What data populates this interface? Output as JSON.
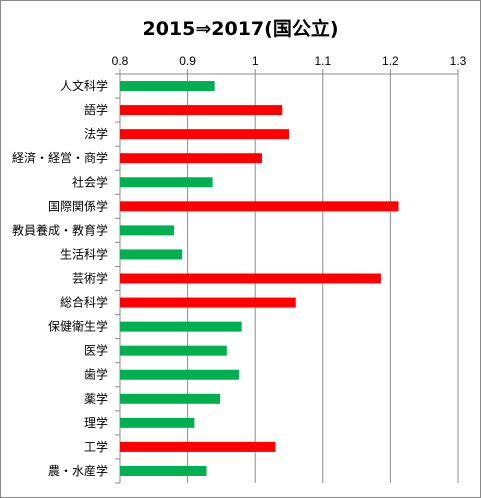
{
  "chart_data": {
    "type": "bar",
    "orientation": "horizontal",
    "title": "2015⇒2017(国公立)",
    "xlabel": "",
    "ylabel": "",
    "xlim": [
      0.8,
      1.3
    ],
    "xticks": [
      "0.8",
      "0.9",
      "1",
      "1.1",
      "1.2",
      "1.3"
    ],
    "grid": true,
    "legend": "none",
    "colors": {
      "above_1": "#ff0000",
      "below_1": "#00b050"
    },
    "categories": [
      "人文科学",
      "語学",
      "法学",
      "経済・経営・商学",
      "社会学",
      "国際関係学",
      "教員養成・教育学",
      "生活科学",
      "芸術学",
      "総合科学",
      "保健衛生学",
      "医学",
      "歯学",
      "薬学",
      "理学",
      "工学",
      "農・水産学"
    ],
    "values": [
      0.94,
      1.04,
      1.05,
      1.01,
      0.937,
      1.212,
      0.88,
      0.892,
      1.186,
      1.06,
      0.98,
      0.958,
      0.976,
      0.948,
      0.91,
      1.03,
      0.928
    ]
  }
}
